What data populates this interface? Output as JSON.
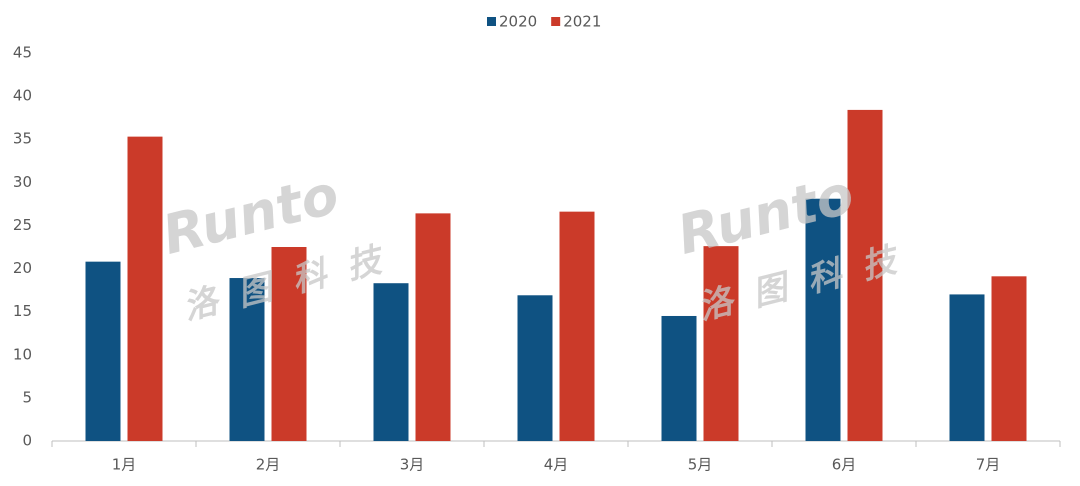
{
  "chart_data": {
    "type": "bar",
    "categories": [
      "1月",
      "2月",
      "3月",
      "4月",
      "5月",
      "6月",
      "7月"
    ],
    "series": [
      {
        "name": "2020",
        "color": "#0f5282",
        "values": [
          20.8,
          18.9,
          18.3,
          16.9,
          14.5,
          28.1,
          17.0
        ]
      },
      {
        "name": "2021",
        "color": "#cb3a29",
        "values": [
          35.3,
          22.5,
          26.4,
          26.6,
          22.6,
          38.4,
          19.1
        ]
      }
    ],
    "ylim": [
      0,
      45
    ],
    "yticks": [
      0,
      5,
      10,
      15,
      20,
      25,
      30,
      35,
      40,
      45
    ],
    "legend": "top",
    "watermark": {
      "brand": "Runto",
      "name": "洛图科技"
    }
  }
}
